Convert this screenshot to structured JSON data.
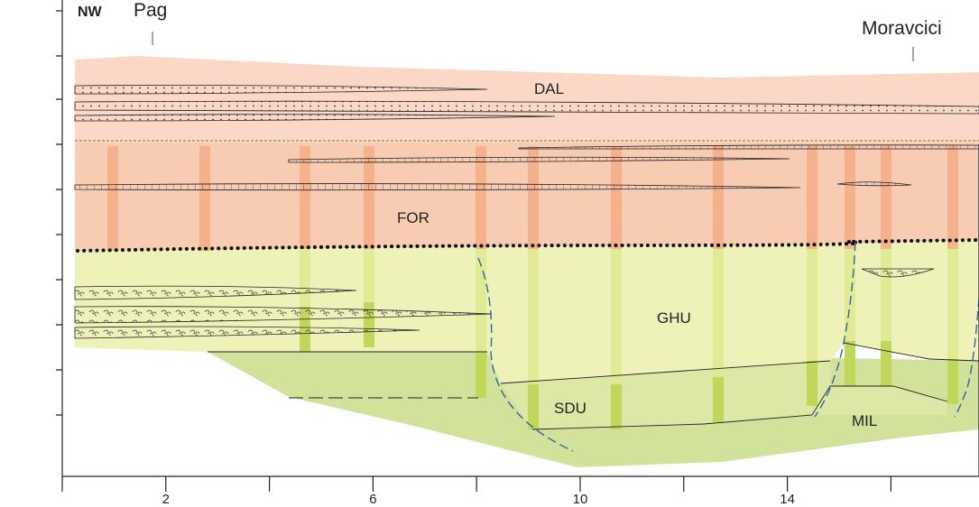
{
  "labels": {
    "direction": "NW",
    "location_left": "Pag",
    "location_right": "Moravcici"
  },
  "units": [
    "DAL",
    "FOR",
    "GHU",
    "SDU",
    "MIL"
  ],
  "x_axis": {
    "ticks": [
      2,
      6,
      10,
      14
    ]
  }
}
